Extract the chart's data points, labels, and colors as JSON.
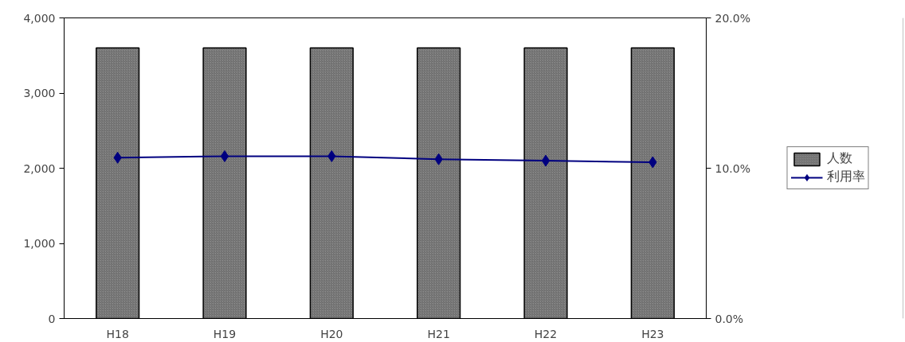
{
  "chart_data": {
    "type": "bar",
    "categories": [
      "H18",
      "H19",
      "H20",
      "H21",
      "H22",
      "H23"
    ],
    "series": [
      {
        "name": "人数",
        "color": "#8c8c8c",
        "values": [
          3600,
          3600,
          3600,
          3600,
          3600,
          3600
        ]
      },
      {
        "name": "利用率",
        "type": "line",
        "axis": "y2",
        "color": "#000080",
        "values": [
          10.7,
          10.8,
          10.8,
          10.6,
          10.5,
          10.4
        ]
      }
    ],
    "ylim": [
      0,
      4000
    ],
    "yticks": [
      {
        "value": 0,
        "label": "0"
      },
      {
        "value": 1000,
        "label": "1,000"
      },
      {
        "value": 2000,
        "label": "2,000"
      },
      {
        "value": 3000,
        "label": "3,000"
      },
      {
        "value": 4000,
        "label": "4,000"
      }
    ],
    "y2lim": [
      0,
      20
    ],
    "y2ticks": [
      {
        "value": 0,
        "label": "0.0%"
      },
      {
        "value": 10,
        "label": "10.0%"
      },
      {
        "value": 20,
        "label": "20.0%"
      }
    ],
    "marker": "diamond",
    "grid": false,
    "legend": "right"
  }
}
